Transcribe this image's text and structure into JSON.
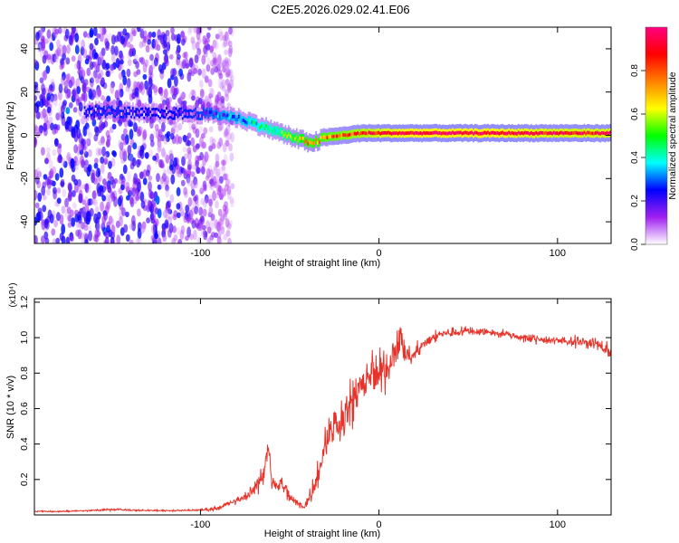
{
  "figure": {
    "title": "C2E5.2026.029.02.41.E06"
  },
  "chart_data": [
    {
      "type": "heatmap",
      "xlabel": "Height of straight line (km)",
      "ylabel": "Frequency (Hz)",
      "xlim": [
        -193,
        130
      ],
      "ylim": [
        -50,
        50
      ],
      "x_ticks": [
        -100,
        0,
        100
      ],
      "x_tick_labels": [
        "-100",
        "0",
        "100"
      ],
      "y_ticks": [
        -40,
        -20,
        0,
        20,
        40
      ],
      "y_tick_labels": [
        "-40",
        "-20",
        "0",
        "20",
        "40"
      ],
      "ridge_x": [
        -165,
        -150,
        -135,
        -120,
        -105,
        -95,
        -85,
        -75,
        -65,
        -55,
        -45,
        -40,
        -35,
        -30,
        -20,
        -10,
        0,
        20,
        60,
        100,
        130
      ],
      "ridge_freq": [
        11,
        11,
        10,
        10,
        10,
        10,
        9,
        7,
        4,
        1,
        -2,
        -3,
        -3,
        -1,
        0,
        1,
        1,
        1,
        1,
        1,
        1
      ],
      "ridge_amplitude": [
        0.12,
        0.16,
        0.12,
        0.1,
        0.15,
        0.22,
        0.3,
        0.34,
        0.4,
        0.5,
        0.62,
        0.72,
        0.7,
        0.75,
        0.8,
        0.85,
        0.9,
        0.95,
        0.95,
        0.9,
        0.9
      ],
      "noise_region_x": [
        -193,
        -90
      ],
      "colorbar": {
        "label": "Normalized spectral amplitude",
        "range": [
          0,
          1
        ],
        "ticks": [
          0,
          0.2,
          0.4,
          0.6,
          0.8
        ],
        "tick_labels": [
          "0.0",
          "0.2",
          "0.4",
          "0.6",
          "0.8"
        ],
        "colors": [
          "#ffffff",
          "#a020f0",
          "#0000ff",
          "#00ffff",
          "#00ff00",
          "#ffff00",
          "#ff8000",
          "#ff0000",
          "#ff0080"
        ]
      }
    },
    {
      "type": "line",
      "xlabel": "Height of straight line (km)",
      "ylabel": "SNR (10 * v/v)",
      "scale_label": "(x10⁴)",
      "xlim": [
        -193,
        130
      ],
      "ylim": [
        0,
        1.22
      ],
      "x_ticks": [
        -100,
        0,
        100
      ],
      "x_tick_labels": [
        "-100",
        "0",
        "100"
      ],
      "y_ticks": [
        0.2,
        0.4,
        0.6,
        0.8,
        1.0,
        1.2
      ],
      "y_tick_labels": [
        "0.2",
        "0.4",
        "0.6",
        "0.8",
        "1.0",
        "1.2"
      ],
      "series": [
        {
          "name": "SNR",
          "color": "#e8332a",
          "x": [
            -193,
            -180,
            -160,
            -150,
            -145,
            -130,
            -110,
            -95,
            -90,
            -85,
            -80,
            -75,
            -70,
            -65,
            -62,
            -60,
            -58,
            -55,
            -52,
            -50,
            -48,
            -45,
            -42,
            -40,
            -38,
            -35,
            -32,
            -30,
            -28,
            -25,
            -22,
            -20,
            -18,
            -15,
            -12,
            -10,
            -8,
            -5,
            -2,
            0,
            2,
            5,
            8,
            10,
            12,
            15,
            18,
            20,
            25,
            30,
            35,
            40,
            50,
            60,
            70,
            80,
            90,
            100,
            110,
            120,
            125,
            130
          ],
          "y": [
            0.02,
            0.02,
            0.025,
            0.03,
            0.03,
            0.025,
            0.025,
            0.03,
            0.04,
            0.06,
            0.08,
            0.1,
            0.14,
            0.22,
            0.4,
            0.2,
            0.16,
            0.18,
            0.14,
            0.1,
            0.08,
            0.06,
            0.05,
            0.08,
            0.12,
            0.22,
            0.3,
            0.4,
            0.45,
            0.5,
            0.55,
            0.52,
            0.6,
            0.65,
            0.7,
            0.68,
            0.75,
            0.78,
            0.8,
            0.78,
            0.82,
            0.85,
            0.9,
            0.95,
            1.0,
            0.92,
            0.88,
            0.92,
            0.96,
            1.0,
            1.02,
            1.03,
            1.04,
            1.03,
            1.02,
            1.0,
            0.99,
            0.98,
            0.98,
            0.97,
            0.95,
            0.92
          ],
          "noise_amplitude": [
            0.005,
            0.005,
            0.006,
            0.008,
            0.008,
            0.006,
            0.006,
            0.01,
            0.015,
            0.02,
            0.025,
            0.03,
            0.05,
            0.08,
            0.12,
            0.08,
            0.06,
            0.06,
            0.05,
            0.04,
            0.03,
            0.03,
            0.03,
            0.05,
            0.06,
            0.1,
            0.12,
            0.15,
            0.15,
            0.16,
            0.16,
            0.16,
            0.18,
            0.18,
            0.18,
            0.18,
            0.18,
            0.16,
            0.15,
            0.15,
            0.15,
            0.14,
            0.14,
            0.12,
            0.12,
            0.08,
            0.06,
            0.05,
            0.04,
            0.04,
            0.035,
            0.035,
            0.03,
            0.03,
            0.03,
            0.03,
            0.03,
            0.03,
            0.035,
            0.04,
            0.05,
            0.06
          ]
        }
      ]
    }
  ]
}
